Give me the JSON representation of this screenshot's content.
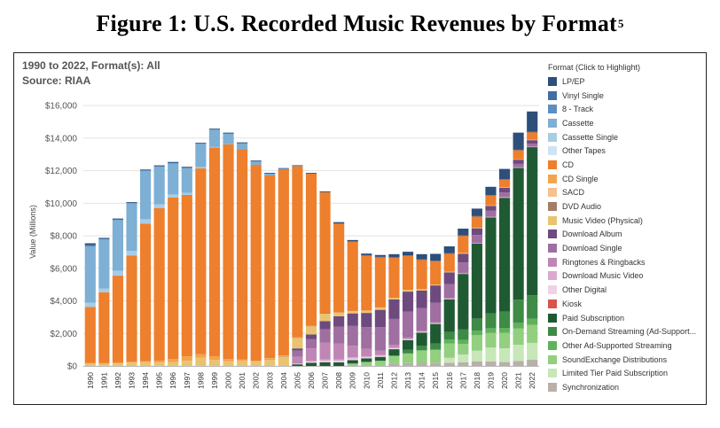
{
  "figure_title": "Figure 1:  U.S. Recorded Music Revenues by Format",
  "figure_footnote": "5",
  "subtitle_line1": "1990 to 2022, Format(s): All",
  "subtitle_line2": "Source: RIAA",
  "chart_data": {
    "type": "bar",
    "stacked": true,
    "ylabel": "Value (Millions)",
    "xlabel": "",
    "ylim": [
      0,
      16500
    ],
    "yticks": [
      0,
      2000,
      4000,
      6000,
      8000,
      10000,
      12000,
      14000,
      16000
    ],
    "ytick_labels": [
      "$0",
      "$2,000",
      "$4,000",
      "$6,000",
      "$8,000",
      "$10,000",
      "$12,000",
      "$14,000",
      "$16,000"
    ],
    "grid": true,
    "legend_position": "right",
    "legend_title": "Format (Click to Highlight)",
    "categories": [
      "1990",
      "1991",
      "1992",
      "1993",
      "1994",
      "1995",
      "1996",
      "1997",
      "1998",
      "1999",
      "2000",
      "2001",
      "2002",
      "2003",
      "2004",
      "2005",
      "2006",
      "2007",
      "2008",
      "2009",
      "2010",
      "2011",
      "2012",
      "2013",
      "2014",
      "2015",
      "2016",
      "2017",
      "2018",
      "2019",
      "2020",
      "2021",
      "2022"
    ],
    "series": [
      {
        "name": "Synchronization",
        "color": "#b9b0a9",
        "values": [
          0,
          0,
          0,
          0,
          0,
          0,
          0,
          0,
          0,
          0,
          0,
          0,
          0,
          0,
          0,
          0,
          0,
          0,
          0,
          0,
          0,
          30,
          170,
          180,
          190,
          200,
          200,
          230,
          290,
          280,
          240,
          300,
          380
        ]
      },
      {
        "name": "Limited Tier Paid Subscription",
        "color": "#c7e7b8",
        "values": [
          0,
          0,
          0,
          0,
          0,
          0,
          0,
          0,
          0,
          0,
          0,
          0,
          0,
          0,
          0,
          0,
          0,
          0,
          0,
          0,
          0,
          0,
          0,
          0,
          0,
          0,
          300,
          470,
          650,
          850,
          850,
          1000,
          1040
        ]
      },
      {
        "name": "SoundExchange Distributions",
        "color": "#92cf7f",
        "values": [
          0,
          0,
          0,
          0,
          0,
          0,
          0,
          0,
          0,
          0,
          0,
          0,
          0,
          0,
          0,
          0,
          0,
          0,
          0,
          150,
          250,
          290,
          460,
          590,
          770,
          800,
          880,
          650,
          950,
          900,
          950,
          1000,
          1100
        ]
      },
      {
        "name": "Other Ad-Supported Streaming",
        "color": "#5fb25b",
        "values": [
          0,
          0,
          0,
          0,
          0,
          0,
          0,
          0,
          0,
          0,
          0,
          0,
          0,
          0,
          0,
          0,
          0,
          0,
          0,
          0,
          0,
          0,
          0,
          0,
          0,
          0,
          250,
          250,
          270,
          290,
          300,
          370,
          380
        ]
      },
      {
        "name": "On-Demand Streaming (Ad-Supported)",
        "color": "#3e8a46",
        "values": [
          0,
          0,
          0,
          0,
          0,
          0,
          0,
          0,
          0,
          0,
          0,
          0,
          0,
          0,
          0,
          0,
          0,
          0,
          0,
          0,
          0,
          0,
          0,
          220,
          290,
          380,
          470,
          660,
          760,
          910,
          1000,
          1400,
          1450
        ]
      },
      {
        "name": "Paid Subscription",
        "color": "#1f5a33",
        "values": [
          0,
          0,
          0,
          0,
          0,
          0,
          0,
          0,
          0,
          0,
          0,
          0,
          0,
          0,
          0,
          100,
          200,
          230,
          220,
          210,
          220,
          240,
          400,
          600,
          800,
          1200,
          2000,
          3400,
          4600,
          5900,
          7000,
          8100,
          9100
        ]
      },
      {
        "name": "Kiosk",
        "color": "#d9534f",
        "values": [
          0,
          0,
          0,
          0,
          0,
          0,
          0,
          0,
          0,
          0,
          0,
          0,
          0,
          0,
          0,
          0,
          0,
          0,
          0,
          0,
          0,
          0,
          0,
          0,
          0,
          0,
          0,
          0,
          0,
          0,
          0,
          0,
          0
        ]
      },
      {
        "name": "Other Digital",
        "color": "#efd2e6",
        "values": [
          0,
          0,
          0,
          0,
          0,
          0,
          0,
          0,
          0,
          0,
          0,
          0,
          0,
          0,
          0,
          40,
          60,
          80,
          90,
          100,
          60,
          60,
          50,
          40,
          30,
          30,
          20,
          20,
          20,
          20,
          20,
          20,
          20
        ]
      },
      {
        "name": "Download Music Video",
        "color": "#dda8cf",
        "values": [
          0,
          0,
          0,
          0,
          0,
          0,
          0,
          0,
          0,
          0,
          0,
          0,
          0,
          0,
          0,
          0,
          50,
          90,
          100,
          80,
          70,
          50,
          50,
          40,
          30,
          20,
          20,
          10,
          10,
          10,
          10,
          10,
          10
        ]
      },
      {
        "name": "Ringtones & Ringbacks",
        "color": "#bf86b5",
        "values": [
          0,
          0,
          0,
          0,
          0,
          0,
          0,
          0,
          0,
          0,
          0,
          0,
          0,
          0,
          0,
          420,
          770,
          1040,
          980,
          700,
          450,
          280,
          170,
          100,
          70,
          60,
          50,
          30,
          20,
          20,
          20,
          10,
          10
        ]
      },
      {
        "name": "Download Single",
        "color": "#9e6fa0",
        "values": [
          0,
          0,
          0,
          0,
          0,
          0,
          0,
          0,
          0,
          0,
          0,
          0,
          0,
          0,
          0,
          380,
          580,
          810,
          1030,
          1220,
          1340,
          1430,
          1590,
          1570,
          1370,
          1200,
          840,
          640,
          480,
          360,
          280,
          210,
          170
        ]
      },
      {
        "name": "Download Album",
        "color": "#6e4a7e",
        "values": [
          0,
          0,
          0,
          0,
          0,
          0,
          0,
          0,
          0,
          0,
          0,
          0,
          0,
          0,
          0,
          140,
          280,
          500,
          640,
          770,
          870,
          1070,
          1200,
          1230,
          1090,
          1060,
          720,
          540,
          410,
          300,
          290,
          260,
          220
        ]
      },
      {
        "name": "Music Video (Physical)",
        "color": "#eac370",
        "values": [
          170,
          120,
          160,
          210,
          230,
          220,
          240,
          320,
          510,
          380,
          280,
          330,
          300,
          400,
          600,
          660,
          500,
          480,
          230,
          150,
          150,
          150,
          100,
          100,
          80,
          50,
          50,
          50,
          40,
          30,
          30,
          20,
          20
        ]
      },
      {
        "name": "DVD Audio",
        "color": "#a47d66",
        "values": [
          0,
          0,
          0,
          0,
          0,
          0,
          0,
          0,
          0,
          0,
          0,
          0,
          0,
          10,
          10,
          10,
          10,
          10,
          0,
          0,
          0,
          0,
          0,
          0,
          0,
          0,
          0,
          0,
          0,
          0,
          0,
          0,
          0
        ]
      },
      {
        "name": "SACD",
        "color": "#f6c08f",
        "values": [
          0,
          0,
          0,
          0,
          0,
          0,
          0,
          0,
          0,
          0,
          0,
          0,
          0,
          30,
          20,
          10,
          10,
          0,
          0,
          0,
          0,
          0,
          0,
          0,
          0,
          0,
          0,
          0,
          0,
          0,
          0,
          0,
          0
        ]
      },
      {
        "name": "CD Single",
        "color": "#f3a44f",
        "values": [
          10,
          70,
          60,
          60,
          60,
          110,
          180,
          270,
          210,
          220,
          140,
          80,
          20,
          40,
          10,
          10,
          0,
          0,
          0,
          0,
          0,
          0,
          0,
          0,
          0,
          0,
          0,
          0,
          0,
          0,
          0,
          0,
          0
        ]
      },
      {
        "name": "CD",
        "color": "#ee7f2d",
        "values": [
          3450,
          4340,
          5330,
          6510,
          8460,
          9380,
          9930,
          9920,
          11420,
          12820,
          13210,
          12910,
          12040,
          11230,
          11450,
          10520,
          9370,
          7450,
          5470,
          4270,
          3390,
          3100,
          2480,
          2120,
          1820,
          1460,
          1120,
          1060,
          700,
          630,
          480,
          580,
          480
        ]
      },
      {
        "name": "Cassette Single",
        "color": "#a9cce4",
        "values": [
          260,
          230,
          300,
          300,
          270,
          230,
          190,
          130,
          90,
          40,
          10,
          0,
          0,
          0,
          0,
          0,
          0,
          0,
          0,
          0,
          0,
          0,
          0,
          0,
          0,
          0,
          0,
          0,
          0,
          0,
          0,
          0,
          0
        ]
      },
      {
        "name": "Cassette",
        "color": "#7eafd4",
        "values": [
          3470,
          3020,
          3120,
          2920,
          2980,
          2300,
          1910,
          1520,
          1420,
          1060,
          630,
          360,
          210,
          110,
          20,
          10,
          0,
          0,
          0,
          0,
          0,
          0,
          0,
          0,
          0,
          0,
          0,
          0,
          0,
          0,
          0,
          0,
          0
        ]
      },
      {
        "name": "Other Tapes",
        "color": "#cfe4f3",
        "values": [
          0,
          0,
          0,
          0,
          0,
          0,
          0,
          0,
          0,
          0,
          0,
          0,
          0,
          0,
          0,
          0,
          0,
          0,
          0,
          0,
          0,
          0,
          0,
          0,
          0,
          0,
          0,
          0,
          0,
          0,
          0,
          0,
          0
        ]
      },
      {
        "name": "8 - Track",
        "color": "#5b8fc1",
        "values": [
          0,
          0,
          0,
          0,
          0,
          0,
          0,
          0,
          0,
          0,
          0,
          0,
          0,
          0,
          0,
          0,
          0,
          0,
          0,
          0,
          0,
          0,
          0,
          0,
          0,
          0,
          0,
          0,
          0,
          0,
          0,
          0,
          0
        ]
      },
      {
        "name": "Vinyl Single",
        "color": "#3f6fa6",
        "values": [
          90,
          60,
          70,
          50,
          50,
          50,
          50,
          40,
          30,
          30,
          30,
          20,
          20,
          20,
          20,
          20,
          10,
          10,
          10,
          10,
          10,
          10,
          10,
          10,
          10,
          10,
          10,
          10,
          10,
          10,
          10,
          10,
          10
        ]
      },
      {
        "name": "LP/EP",
        "color": "#2d4f7a",
        "values": [
          90,
          30,
          20,
          20,
          30,
          40,
          40,
          40,
          40,
          40,
          40,
          40,
          40,
          30,
          30,
          20,
          30,
          30,
          70,
          80,
          100,
          110,
          190,
          220,
          320,
          420,
          420,
          420,
          460,
          500,
          630,
          1050,
          1250
        ]
      }
    ]
  },
  "legend": {
    "title": "Format (Click to Highlight)",
    "items": [
      {
        "label": "LP/EP",
        "color": "#2d4f7a"
      },
      {
        "label": "Vinyl Single",
        "color": "#3f6fa6"
      },
      {
        "label": "8 - Track",
        "color": "#5b8fc1"
      },
      {
        "label": "Cassette",
        "color": "#7eafd4"
      },
      {
        "label": "Cassette Single",
        "color": "#a9cce4"
      },
      {
        "label": "Other Tapes",
        "color": "#cfe4f3"
      },
      {
        "label": "CD",
        "color": "#ee7f2d"
      },
      {
        "label": "CD Single",
        "color": "#f3a44f"
      },
      {
        "label": "SACD",
        "color": "#f6c08f"
      },
      {
        "label": "DVD Audio",
        "color": "#a47d66"
      },
      {
        "label": "Music Video (Physical)",
        "color": "#eac370"
      },
      {
        "label": "Download Album",
        "color": "#6e4a7e"
      },
      {
        "label": "Download Single",
        "color": "#9e6fa0"
      },
      {
        "label": "Ringtones & Ringbacks",
        "color": "#bf86b5"
      },
      {
        "label": "Download Music Video",
        "color": "#dda8cf"
      },
      {
        "label": "Other Digital",
        "color": "#efd2e6"
      },
      {
        "label": "Kiosk",
        "color": "#d9534f"
      },
      {
        "label": "Paid Subscription",
        "color": "#1f5a33"
      },
      {
        "label": "On-Demand Streaming (Ad-Support...",
        "color": "#3e8a46"
      },
      {
        "label": "Other Ad-Supported Streaming",
        "color": "#5fb25b"
      },
      {
        "label": "SoundExchange Distributions",
        "color": "#92cf7f"
      },
      {
        "label": "Limited Tier Paid Subscription",
        "color": "#c7e7b8"
      },
      {
        "label": "Synchronization",
        "color": "#b9b0a9"
      }
    ]
  }
}
